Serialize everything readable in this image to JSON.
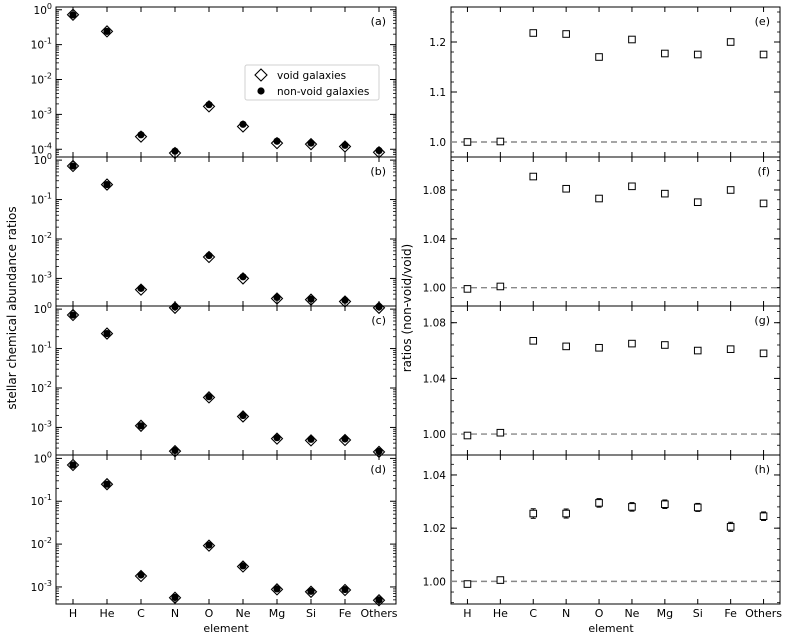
{
  "chart_data": {
    "type": "scatter",
    "categories": [
      "H",
      "He",
      "C",
      "N",
      "O",
      "Ne",
      "Mg",
      "Si",
      "Fe",
      "Others"
    ],
    "left_ylabel": "stellar chemical abundance ratios",
    "right_ylabel": "ratios (non-void/void)",
    "xlabel": "element",
    "legend": {
      "placement": "upper-right of panel (a)",
      "entries": [
        {
          "name": "void galaxies",
          "marker": "open-diamond"
        },
        {
          "name": "non-void galaxies",
          "marker": "filled-circle"
        }
      ]
    },
    "left_panels": [
      {
        "label": "(a)",
        "yscale": "log",
        "ylim": [
          6e-05,
          1.2
        ],
        "ticks": [
          {
            "v": 0.0001,
            "b": "10",
            "e": "-4"
          },
          {
            "v": 0.001,
            "b": "10",
            "e": "-3"
          },
          {
            "v": 0.01,
            "b": "10",
            "e": "-2"
          },
          {
            "v": 0.1,
            "b": "10",
            "e": "-1"
          },
          {
            "v": 1,
            "b": "10",
            "e": "0"
          }
        ],
        "series": [
          {
            "name": "void galaxies",
            "values": [
              0.72,
              0.24,
              0.00023,
              7.8e-05,
              0.0017,
              0.00045,
              0.00015,
              0.00014,
              0.00012,
              8.2e-05
            ]
          },
          {
            "name": "non-void galaxies",
            "values": [
              0.71,
              0.24,
              0.00026,
              8.8e-05,
              0.0019,
              0.00052,
              0.00017,
              0.00015,
              0.00013,
              9.2e-05
            ]
          }
        ]
      },
      {
        "label": "(b)",
        "yscale": "log",
        "ylim": [
          0.0002,
          1.2
        ],
        "ticks": [
          {
            "v": 0.001,
            "b": "10",
            "e": "-3"
          },
          {
            "v": 0.01,
            "b": "10",
            "e": "-2"
          },
          {
            "v": 0.1,
            "b": "10",
            "e": "-1"
          },
          {
            "v": 1,
            "b": "10",
            "e": "0"
          }
        ],
        "series": [
          {
            "name": "void galaxies",
            "values": [
              0.71,
              0.24,
              0.00052,
              0.00018,
              0.0035,
              0.001,
              0.00031,
              0.00029,
              0.00026,
              0.00018
            ]
          },
          {
            "name": "non-void galaxies",
            "values": [
              0.71,
              0.24,
              0.00056,
              0.00019,
              0.0038,
              0.0011,
              0.00033,
              0.0003,
              0.00028,
              0.00019
            ]
          }
        ]
      },
      {
        "label": "(c)",
        "yscale": "log",
        "ylim": [
          0.0002,
          1.2
        ],
        "ticks": [
          {
            "v": 0.001,
            "b": "10",
            "e": "-3"
          },
          {
            "v": 0.01,
            "b": "10",
            "e": "-2"
          },
          {
            "v": 0.1,
            "b": "10",
            "e": "-1"
          },
          {
            "v": 1,
            "b": "10",
            "e": "0"
          }
        ],
        "series": [
          {
            "name": "void galaxies",
            "values": [
              0.71,
              0.24,
              0.0011,
              0.00025,
              0.0058,
              0.0019,
              0.00052,
              0.00047,
              0.00048,
              0.00024
            ]
          },
          {
            "name": "non-void galaxies",
            "values": [
              0.71,
              0.24,
              0.0011,
              0.00026,
              0.006,
              0.002,
              0.00055,
              0.0005,
              0.00051,
              0.00025
            ]
          }
        ]
      },
      {
        "label": "(d)",
        "yscale": "log",
        "ylim": [
          0.0004,
          1.2
        ],
        "ticks": [
          {
            "v": 0.001,
            "b": "10",
            "e": "-3"
          },
          {
            "v": 0.01,
            "b": "10",
            "e": "-2"
          },
          {
            "v": 0.1,
            "b": "10",
            "e": "-1"
          },
          {
            "v": 1,
            "b": "10",
            "e": "0"
          }
        ],
        "series": [
          {
            "name": "void galaxies",
            "values": [
              0.7,
              0.25,
              0.0018,
              0.00056,
              0.0092,
              0.003,
              0.00088,
              0.00077,
              0.00085,
              0.00049
            ]
          },
          {
            "name": "non-void galaxies",
            "values": [
              0.7,
              0.25,
              0.0019,
              0.00057,
              0.0095,
              0.0031,
              0.0009,
              0.00079,
              0.00087,
              0.0005
            ]
          }
        ]
      }
    ],
    "right_panels": [
      {
        "label": "(e)",
        "yscale": "linear",
        "ylim": [
          0.97,
          1.27
        ],
        "ticks": [
          {
            "v": 1.0,
            "t": "1.0"
          },
          {
            "v": 1.1,
            "t": "1.1"
          },
          {
            "v": 1.2,
            "t": "1.2"
          }
        ],
        "reference_line": 1.0,
        "values": [
          1.0,
          1.001,
          1.218,
          1.216,
          1.17,
          1.205,
          1.177,
          1.175,
          1.2,
          1.175
        ],
        "errors": [
          0,
          0,
          0,
          0,
          0,
          0,
          0,
          0,
          0,
          0
        ]
      },
      {
        "label": "(f)",
        "yscale": "linear",
        "ylim": [
          0.985,
          1.107
        ],
        "ticks": [
          {
            "v": 1.0,
            "t": "1.00"
          },
          {
            "v": 1.04,
            "t": "1.04"
          },
          {
            "v": 1.08,
            "t": "1.08"
          }
        ],
        "reference_line": 1.0,
        "values": [
          0.999,
          1.001,
          1.091,
          1.081,
          1.073,
          1.083,
          1.077,
          1.07,
          1.08,
          1.069
        ],
        "errors": [
          0,
          0,
          0,
          0,
          0,
          0,
          0,
          0,
          0,
          0
        ]
      },
      {
        "label": "(g)",
        "yscale": "linear",
        "ylim": [
          0.985,
          1.092
        ],
        "ticks": [
          {
            "v": 1.0,
            "t": "1.00"
          },
          {
            "v": 1.04,
            "t": "1.04"
          },
          {
            "v": 1.08,
            "t": "1.08"
          }
        ],
        "reference_line": 1.0,
        "values": [
          0.999,
          1.001,
          1.067,
          1.063,
          1.062,
          1.065,
          1.064,
          1.06,
          1.061,
          1.058
        ],
        "errors": [
          0,
          0,
          0,
          0,
          0,
          0,
          0,
          0,
          0,
          0
        ]
      },
      {
        "label": "(h)",
        "yscale": "linear",
        "ylim": [
          0.9915,
          1.0475
        ],
        "ticks": [
          {
            "v": 1.0,
            "t": "1.00"
          },
          {
            "v": 1.02,
            "t": "1.02"
          },
          {
            "v": 1.04,
            "t": "1.04"
          }
        ],
        "reference_line": 1.0,
        "values": [
          0.999,
          1.0005,
          1.0255,
          1.0255,
          1.0295,
          1.028,
          1.029,
          1.0278,
          1.0205,
          1.0245
        ],
        "errors": [
          0,
          0,
          0.0018,
          0.0017,
          0.0016,
          0.0016,
          0.0016,
          0.0015,
          0.0017,
          0.0016
        ]
      }
    ]
  }
}
